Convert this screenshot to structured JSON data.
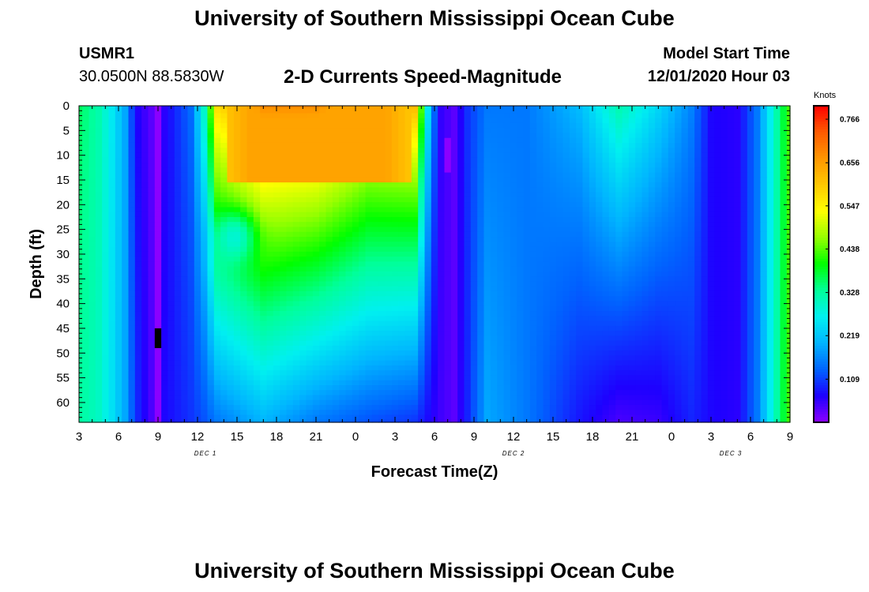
{
  "page": {
    "title_top": "University of Southern Mississippi Ocean Cube",
    "title_bottom": "University of Southern Mississippi Ocean Cube",
    "station_id": "USMR1",
    "station_coords": "30.0500N 88.5830W",
    "chart_title": "2-D Currents Speed-Magnitude",
    "model_start_label": "Model Start Time",
    "model_start_value": "12/01/2020 Hour 03"
  },
  "colors": {
    "palette": [
      "#8b00ff",
      "#1e00ff",
      "#0064ff",
      "#00b4ff",
      "#00f0f0",
      "#00ff9a",
      "#00ff00",
      "#96ff00",
      "#ffff00",
      "#ffc800",
      "#ff9600",
      "#ff5a00",
      "#ff0000"
    ]
  },
  "chart_data": {
    "type": "heatmap",
    "title": "2-D Currents Speed-Magnitude",
    "xlabel": "Forecast Time(Z)",
    "ylabel": "Depth (ft)",
    "x_range_hours": [
      0,
      54
    ],
    "y_range_ft": [
      0,
      64
    ],
    "x_ticks": [
      {
        "hour": 0,
        "label": "3"
      },
      {
        "hour": 3,
        "label": "6"
      },
      {
        "hour": 6,
        "label": "9"
      },
      {
        "hour": 9,
        "label": "12"
      },
      {
        "hour": 12,
        "label": "15"
      },
      {
        "hour": 15,
        "label": "18"
      },
      {
        "hour": 18,
        "label": "21"
      },
      {
        "hour": 21,
        "label": "0"
      },
      {
        "hour": 24,
        "label": "3"
      },
      {
        "hour": 27,
        "label": "6"
      },
      {
        "hour": 30,
        "label": "9"
      },
      {
        "hour": 33,
        "label": "12"
      },
      {
        "hour": 36,
        "label": "15"
      },
      {
        "hour": 39,
        "label": "18"
      },
      {
        "hour": 42,
        "label": "21"
      },
      {
        "hour": 45,
        "label": "0"
      },
      {
        "hour": 48,
        "label": "3"
      },
      {
        "hour": 51,
        "label": "6"
      },
      {
        "hour": 54,
        "label": "9"
      }
    ],
    "date_labels": [
      {
        "hour": 9.6,
        "label": "DEC 1"
      },
      {
        "hour": 33.0,
        "label": "DEC 2"
      },
      {
        "hour": 49.5,
        "label": "DEC 3"
      }
    ],
    "y_ticks": [
      0,
      5,
      10,
      15,
      20,
      25,
      30,
      35,
      40,
      45,
      50,
      55,
      60
    ],
    "colorbar": {
      "unit": "Knots",
      "min": 0.0,
      "max": 0.8,
      "tick_values": [
        "0.766",
        "0.656",
        "0.547",
        "0.438",
        "0.328",
        "0.219",
        "0.109"
      ]
    },
    "grid": {
      "n_depths": 65,
      "n_times": 109,
      "time_step_hours": 0.5,
      "depth_step_ft": 1
    },
    "column_profiles": [
      {
        "hour": 0.0,
        "surface": 0.36,
        "bottom": 0.33
      },
      {
        "hour": 1.5,
        "surface": 0.32,
        "bottom": 0.3
      },
      {
        "hour": 2.5,
        "surface": 0.26,
        "bottom": 0.25
      },
      {
        "hour": 3.5,
        "surface": 0.19,
        "bottom": 0.19
      },
      {
        "hour": 4.3,
        "surface": 0.07,
        "bottom": 0.1
      },
      {
        "hour": 5.5,
        "surface": 0.03,
        "bottom": 0.04
      },
      {
        "hour": 6.5,
        "surface": 0.06,
        "bottom": 0.07
      },
      {
        "hour": 8.5,
        "surface": 0.14,
        "bottom": 0.1
      },
      {
        "hour": 9.5,
        "surface": 0.3,
        "bottom": 0.12
      },
      {
        "hour": 10.5,
        "surface": 0.58,
        "bottom": 0.15
      },
      {
        "hour": 14.0,
        "surface": 0.68,
        "bottom": 0.2
      },
      {
        "hour": 18.0,
        "surface": 0.68,
        "bottom": 0.15
      },
      {
        "hour": 22.0,
        "surface": 0.6,
        "bottom": 0.12
      },
      {
        "hour": 25.5,
        "surface": 0.62,
        "bottom": 0.1
      },
      {
        "hour": 26.5,
        "surface": 0.26,
        "bottom": 0.07
      },
      {
        "hour": 27.3,
        "surface": 0.06,
        "bottom": 0.05
      },
      {
        "hour": 28.5,
        "surface": 0.03,
        "bottom": 0.03
      },
      {
        "hour": 29.5,
        "surface": 0.1,
        "bottom": 0.09
      },
      {
        "hour": 31.0,
        "surface": 0.15,
        "bottom": 0.19
      },
      {
        "hour": 34.0,
        "surface": 0.15,
        "bottom": 0.15
      },
      {
        "hour": 38.0,
        "surface": 0.21,
        "bottom": 0.08
      },
      {
        "hour": 41.0,
        "surface": 0.32,
        "bottom": 0.04
      },
      {
        "hour": 44.0,
        "surface": 0.24,
        "bottom": 0.05
      },
      {
        "hour": 46.5,
        "surface": 0.16,
        "bottom": 0.09
      },
      {
        "hour": 48.0,
        "surface": 0.07,
        "bottom": 0.07
      },
      {
        "hour": 50.0,
        "surface": 0.06,
        "bottom": 0.06
      },
      {
        "hour": 51.5,
        "surface": 0.15,
        "bottom": 0.15
      },
      {
        "hour": 52.8,
        "surface": 0.3,
        "bottom": 0.3
      },
      {
        "hour": 54.0,
        "surface": 0.43,
        "bottom": 0.43
      }
    ],
    "features": [
      {
        "name": "thermo-layer",
        "hour_range": [
          10.5,
          25.5
        ],
        "depth_range": [
          0,
          16
        ],
        "value": 0.64
      },
      {
        "name": "purple-streak",
        "hour": 6.0,
        "value": 0.0
      },
      {
        "name": "magenta-spot",
        "hour": 28.0,
        "depth": 10,
        "value": 0.0
      },
      {
        "name": "missing-block",
        "hour": 6.0,
        "depth_range": [
          45,
          49
        ]
      }
    ]
  }
}
